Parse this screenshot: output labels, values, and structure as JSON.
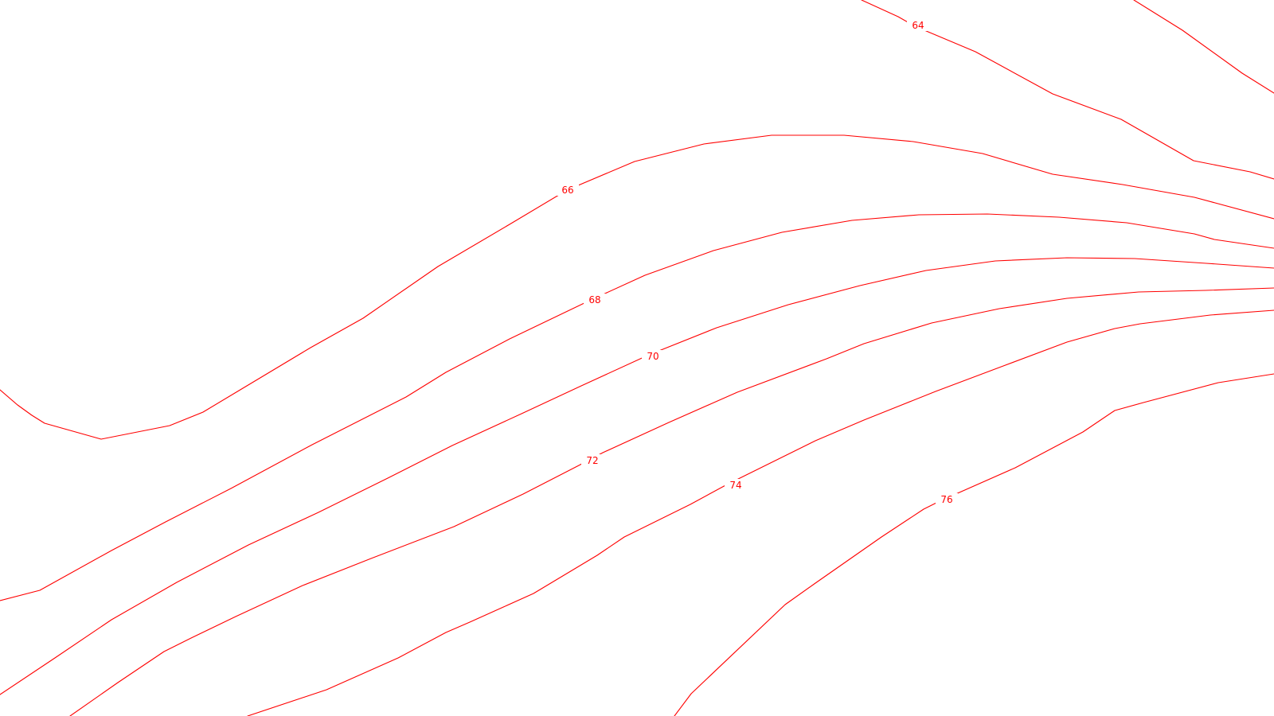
{
  "map": {
    "type": "contour-lines",
    "line_color": "#ff0000",
    "background_color": "#ffffff",
    "contour_labels": [
      "64",
      "66",
      "68",
      "70",
      "72",
      "74",
      "76"
    ]
  }
}
